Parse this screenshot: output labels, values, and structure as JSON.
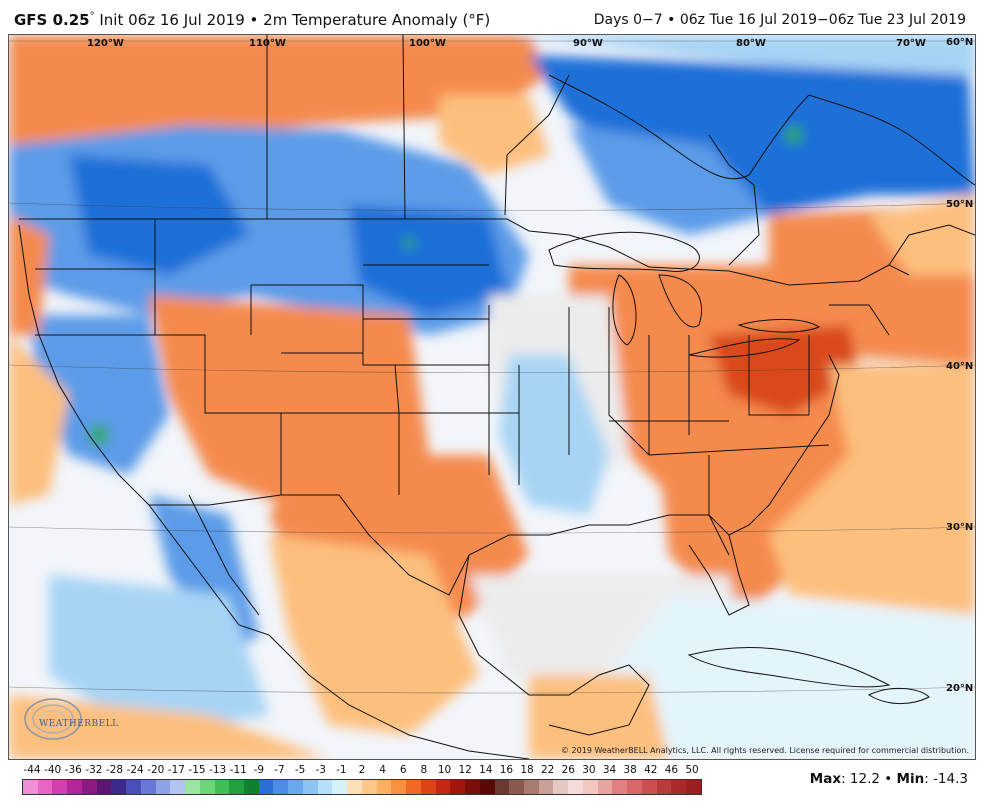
{
  "header": {
    "model": "GFS 0.25",
    "degree": "°",
    "init": "Init 06z 16 Jul 2019",
    "bullet": "•",
    "field": "2m Temperature Anomaly (°F)",
    "range": "Days 0−7 • 06z Tue 16 Jul 2019−06z Tue 23 Jul 2019"
  },
  "map": {
    "lon_labels": [
      "120°W",
      "110°W",
      "100°W",
      "90°W",
      "80°W",
      "70°W"
    ],
    "lat_labels": [
      "60°N",
      "50°N",
      "40°N",
      "30°N",
      "20°N"
    ],
    "copyright": "© 2019 WeatherBELL Analytics, LLC. All rights reserved. License required for commercial distribution.",
    "logo_text": "WEATHERBELL",
    "colors": {
      "cold_strong": "#1f6fd8",
      "cold": "#5c9be8",
      "cool": "#a7d4f5",
      "neutral": "#ececec",
      "warm": "#fdbf7e",
      "hot": "#f58a4e",
      "very_hot": "#d94a1e",
      "extreme_cold": "#2ea84a"
    }
  },
  "scale": {
    "labels": [
      "-44",
      "-40",
      "-36",
      "-32",
      "-28",
      "-24",
      "-20",
      "-17",
      "-15",
      "-13",
      "-11",
      "-9",
      "-7",
      "-5",
      "-3",
      "-1",
      "2",
      "4",
      "6",
      "8",
      "10",
      "12",
      "14",
      "16",
      "18",
      "22",
      "26",
      "30",
      "34",
      "38",
      "42",
      "46",
      "50"
    ],
    "colors": [
      "#f08fd6",
      "#e865c6",
      "#d43fb0",
      "#b3259a",
      "#8a1a80",
      "#5a1670",
      "#3b2a8a",
      "#4a4fb8",
      "#6878d8",
      "#8ea2e6",
      "#b4c4f0",
      "#9ae6a0",
      "#6ed47a",
      "#3fbf55",
      "#22a040",
      "#118030",
      "#2a6fd8",
      "#4a8ce6",
      "#6aa8ee",
      "#8ec4f4",
      "#b6e0fa",
      "#d8f2fc",
      "#fde0b8",
      "#fdc88a",
      "#fcae62",
      "#f8903f",
      "#f06a25",
      "#de4418",
      "#c42812",
      "#a0160c",
      "#7a0e08",
      "#5a0806",
      "#6a3a32",
      "#8a5a50",
      "#a87a70",
      "#c8a098",
      "#e6c8c2",
      "#f4dcd8",
      "#f0c8c0",
      "#e8a4a0",
      "#e08080",
      "#d86868",
      "#c85050",
      "#b83c3c",
      "#a82a2a",
      "#9a2020"
    ]
  },
  "stats": {
    "max_label": "Max",
    "max_value": "12.2",
    "sep": "•",
    "min_label": "Min",
    "min_value": "-14.3"
  }
}
